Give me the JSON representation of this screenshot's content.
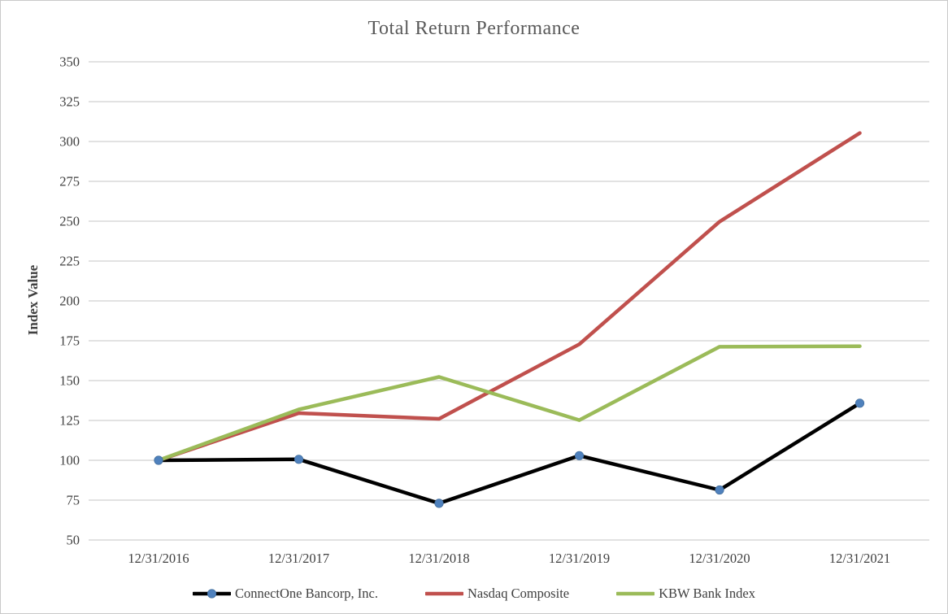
{
  "window": {
    "background": "#FFFFFF",
    "border_color": "#C9C9C9"
  },
  "chart_data": {
    "type": "line",
    "title": "Total Return Performance",
    "ylabel": "Index Value",
    "xlabel": "",
    "categories": [
      "12/31/2016",
      "12/31/2017",
      "12/31/2018",
      "12/31/2019",
      "12/31/2020",
      "12/31/2021"
    ],
    "series": [
      {
        "name": "ConnectOne Bancorp, Inc.",
        "color": "#000000",
        "marker": "circle",
        "marker_color": "#4F81BD",
        "values": [
          100,
          100.6,
          73.0,
          102.9,
          81.4,
          135.8
        ]
      },
      {
        "name": "Nasdaq Composite",
        "color": "#C0504D",
        "marker": "none",
        "marker_color": null,
        "values": [
          100,
          129.6,
          126.0,
          172.8,
          249.7,
          305.3
        ]
      },
      {
        "name": "KBW Bank Index",
        "color": "#9BBB59",
        "marker": "none",
        "marker_color": null,
        "values": [
          100,
          131.9,
          152.3,
          125.2,
          171.2,
          171.6
        ]
      }
    ],
    "ylim": [
      50,
      350
    ],
    "yticks": [
      350,
      325,
      300,
      275,
      250,
      225,
      200,
      175,
      150,
      125,
      100,
      75,
      50
    ],
    "grid": "horizontal",
    "gridline_color": "#D9D9D9",
    "axis_text_color": "#404040",
    "title_color": "#595959",
    "legend_position": "bottom"
  }
}
